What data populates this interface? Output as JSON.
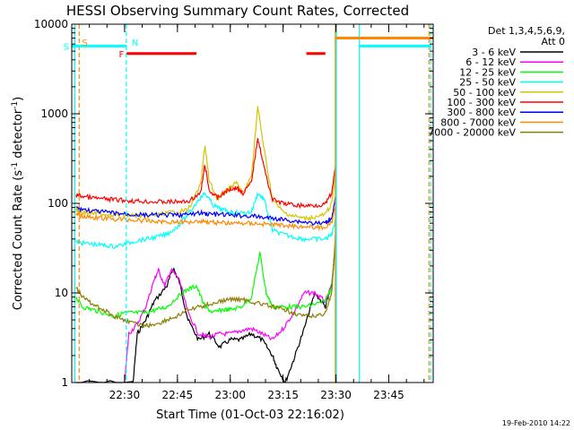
{
  "chart_data": {
    "type": "line",
    "title": "HESSI Observing Summary Count Rates, Corrected",
    "xlabel": "Start Time (01-Oct-03 22:16:02)",
    "ylabel_main": "Corrected Count Rate (s",
    "ylabel_sup1": "-1",
    "ylabel_mid": " detector",
    "ylabel_sup2": "-1",
    "ylabel_end": ")",
    "y_scale": "log",
    "ylim": [
      1,
      10000
    ],
    "xlim_minutes": [
      22.25,
      23.96
    ],
    "x_ticks": [
      {
        "label": "22:30",
        "t": 22.5
      },
      {
        "label": "22:45",
        "t": 22.75
      },
      {
        "label": "23:00",
        "t": 23.0
      },
      {
        "label": "23:15",
        "t": 23.25
      },
      {
        "label": "23:30",
        "t": 23.5
      },
      {
        "label": "23:45",
        "t": 23.75
      }
    ],
    "y_ticks": [
      {
        "label": "1",
        "v": 1
      },
      {
        "label": "10",
        "v": 10
      },
      {
        "label": "100",
        "v": 100
      },
      {
        "label": "1000",
        "v": 1000
      },
      {
        "label": "10000",
        "v": 10000
      }
    ],
    "legend": {
      "placement": "right",
      "header1": "Det 1,3,4,5,6,9,",
      "header2": "Att 0",
      "entries": [
        {
          "label": "3 - 6 keV",
          "color": "#000000"
        },
        {
          "label": "6 - 12 keV",
          "color": "#ff00ff"
        },
        {
          "label": "12 - 25 keV",
          "color": "#00ff00"
        },
        {
          "label": "25 - 50 keV",
          "color": "#00ffff"
        },
        {
          "label": "50 - 100 keV",
          "color": "#d4c400"
        },
        {
          "label": "100 - 300 keV",
          "color": "#ff0000"
        },
        {
          "label": "300 - 800 keV",
          "color": "#0000ff"
        },
        {
          "label": "800 - 7000 keV",
          "color": "#ff8800"
        },
        {
          "label": "7000 - 20000 keV",
          "color": "#8b7d00"
        }
      ]
    },
    "series": [
      {
        "name": "3 - 6 keV",
        "color": "#000000",
        "points": [
          [
            22.27,
            1
          ],
          [
            22.54,
            1
          ],
          [
            22.56,
            3.5
          ],
          [
            22.6,
            5
          ],
          [
            22.64,
            8
          ],
          [
            22.7,
            12
          ],
          [
            22.73,
            19
          ],
          [
            22.76,
            13
          ],
          [
            22.8,
            5
          ],
          [
            22.85,
            3
          ],
          [
            22.9,
            3.5
          ],
          [
            22.95,
            2.5
          ],
          [
            23.0,
            3
          ],
          [
            23.05,
            3
          ],
          [
            23.1,
            3.5
          ],
          [
            23.15,
            3
          ],
          [
            23.2,
            2
          ],
          [
            23.22,
            1.5
          ],
          [
            23.26,
            1
          ],
          [
            23.3,
            1.8
          ],
          [
            23.35,
            4
          ],
          [
            23.4,
            10
          ],
          [
            23.45,
            7
          ],
          [
            23.48,
            12
          ],
          [
            23.5,
            40
          ]
        ]
      },
      {
        "name": "6 - 12 keV",
        "color": "#ff00ff",
        "points": [
          [
            22.5,
            1
          ],
          [
            22.52,
            3.5
          ],
          [
            22.56,
            4.5
          ],
          [
            22.6,
            7
          ],
          [
            22.64,
            14
          ],
          [
            22.66,
            18
          ],
          [
            22.69,
            12
          ],
          [
            22.72,
            18
          ],
          [
            22.76,
            14
          ],
          [
            22.8,
            6
          ],
          [
            22.85,
            3.5
          ],
          [
            22.9,
            3.2
          ],
          [
            22.95,
            3.5
          ],
          [
            23.0,
            3.5
          ],
          [
            23.05,
            3.8
          ],
          [
            23.1,
            4
          ],
          [
            23.15,
            3.5
          ],
          [
            23.2,
            3
          ],
          [
            23.25,
            4
          ],
          [
            23.3,
            6
          ],
          [
            23.35,
            10
          ],
          [
            23.4,
            10
          ],
          [
            23.45,
            8
          ],
          [
            23.48,
            12
          ],
          [
            23.5,
            40
          ]
        ]
      },
      {
        "name": "12 - 25 keV",
        "color": "#00ff00",
        "points": [
          [
            22.27,
            9
          ],
          [
            22.3,
            7
          ],
          [
            22.35,
            6.5
          ],
          [
            22.4,
            6
          ],
          [
            22.45,
            5.5
          ],
          [
            22.5,
            6
          ],
          [
            22.55,
            6
          ],
          [
            22.6,
            6
          ],
          [
            22.65,
            6.5
          ],
          [
            22.7,
            7
          ],
          [
            22.75,
            9
          ],
          [
            22.8,
            11
          ],
          [
            22.84,
            12
          ],
          [
            22.88,
            7
          ],
          [
            22.92,
            6
          ],
          [
            22.96,
            6.5
          ],
          [
            23.0,
            6.5
          ],
          [
            23.05,
            7
          ],
          [
            23.1,
            9
          ],
          [
            23.14,
            28
          ],
          [
            23.17,
            10
          ],
          [
            23.2,
            7
          ],
          [
            23.25,
            7
          ],
          [
            23.3,
            7
          ],
          [
            23.35,
            7
          ],
          [
            23.4,
            7.5
          ],
          [
            23.45,
            8
          ],
          [
            23.48,
            12
          ],
          [
            23.5,
            40
          ]
        ]
      },
      {
        "name": "25 - 50 keV",
        "color": "#00ffff",
        "points": [
          [
            22.27,
            37
          ],
          [
            22.3,
            36
          ],
          [
            22.35,
            35
          ],
          [
            22.4,
            34
          ],
          [
            22.45,
            33
          ],
          [
            22.5,
            35
          ],
          [
            22.55,
            38
          ],
          [
            22.6,
            40
          ],
          [
            22.65,
            42
          ],
          [
            22.7,
            45
          ],
          [
            22.75,
            55
          ],
          [
            22.8,
            75
          ],
          [
            22.85,
            110
          ],
          [
            22.88,
            130
          ],
          [
            22.92,
            95
          ],
          [
            22.96,
            85
          ],
          [
            23.0,
            80
          ],
          [
            23.05,
            78
          ],
          [
            23.1,
            80
          ],
          [
            23.13,
            130
          ],
          [
            23.16,
            110
          ],
          [
            23.2,
            50
          ],
          [
            23.25,
            45
          ],
          [
            23.3,
            42
          ],
          [
            23.35,
            40
          ],
          [
            23.4,
            40
          ],
          [
            23.45,
            40
          ],
          [
            23.48,
            45
          ],
          [
            23.5,
            70
          ]
        ]
      },
      {
        "name": "50 - 100 keV",
        "color": "#d4c400",
        "points": [
          [
            22.27,
            85
          ],
          [
            22.3,
            80
          ],
          [
            22.35,
            78
          ],
          [
            22.4,
            76
          ],
          [
            22.45,
            75
          ],
          [
            22.5,
            74
          ],
          [
            22.55,
            73
          ],
          [
            22.6,
            72
          ],
          [
            22.65,
            74
          ],
          [
            22.7,
            78
          ],
          [
            22.75,
            80
          ],
          [
            22.8,
            85
          ],
          [
            22.86,
            160
          ],
          [
            22.88,
            450
          ],
          [
            22.9,
            180
          ],
          [
            22.94,
            110
          ],
          [
            22.97,
            130
          ],
          [
            23.0,
            150
          ],
          [
            23.03,
            170
          ],
          [
            23.06,
            130
          ],
          [
            23.1,
            200
          ],
          [
            23.13,
            1200
          ],
          [
            23.16,
            400
          ],
          [
            23.2,
            110
          ],
          [
            23.25,
            80
          ],
          [
            23.3,
            72
          ],
          [
            23.35,
            68
          ],
          [
            23.4,
            70
          ],
          [
            23.45,
            75
          ],
          [
            23.48,
            100
          ],
          [
            23.5,
            250
          ]
        ]
      },
      {
        "name": "100 - 300 keV",
        "color": "#ff0000",
        "points": [
          [
            22.27,
            125
          ],
          [
            22.3,
            120
          ],
          [
            22.35,
            115
          ],
          [
            22.4,
            112
          ],
          [
            22.45,
            110
          ],
          [
            22.5,
            108
          ],
          [
            22.55,
            106
          ],
          [
            22.6,
            105
          ],
          [
            22.65,
            104
          ],
          [
            22.7,
            104
          ],
          [
            22.75,
            104
          ],
          [
            22.8,
            105
          ],
          [
            22.86,
            130
          ],
          [
            22.88,
            270
          ],
          [
            22.9,
            140
          ],
          [
            22.94,
            115
          ],
          [
            22.97,
            130
          ],
          [
            23.0,
            145
          ],
          [
            23.03,
            150
          ],
          [
            23.06,
            130
          ],
          [
            23.1,
            170
          ],
          [
            23.13,
            550
          ],
          [
            23.16,
            250
          ],
          [
            23.2,
            110
          ],
          [
            23.25,
            100
          ],
          [
            23.3,
            96
          ],
          [
            23.35,
            94
          ],
          [
            23.4,
            95
          ],
          [
            23.45,
            98
          ],
          [
            23.48,
            130
          ],
          [
            23.5,
            280
          ]
        ]
      },
      {
        "name": "300 - 800 keV",
        "color": "#0000ff",
        "points": [
          [
            22.27,
            90
          ],
          [
            22.3,
            86
          ],
          [
            22.35,
            82
          ],
          [
            22.4,
            80
          ],
          [
            22.45,
            78
          ],
          [
            22.5,
            76
          ],
          [
            22.55,
            75
          ],
          [
            22.6,
            74
          ],
          [
            22.65,
            74
          ],
          [
            22.7,
            74
          ],
          [
            22.75,
            74
          ],
          [
            22.8,
            75
          ],
          [
            22.86,
            78
          ],
          [
            22.9,
            76
          ],
          [
            22.95,
            75
          ],
          [
            23.0,
            74
          ],
          [
            23.05,
            73
          ],
          [
            23.1,
            72
          ],
          [
            23.15,
            70
          ],
          [
            23.2,
            68
          ],
          [
            23.25,
            66
          ],
          [
            23.3,
            64
          ],
          [
            23.35,
            62
          ],
          [
            23.4,
            60
          ],
          [
            23.45,
            60
          ],
          [
            23.48,
            70
          ],
          [
            23.5,
            120
          ]
        ]
      },
      {
        "name": "800 - 7000 keV",
        "color": "#ff8800",
        "points": [
          [
            22.27,
            75
          ],
          [
            22.3,
            72
          ],
          [
            22.35,
            70
          ],
          [
            22.4,
            68
          ],
          [
            22.45,
            67
          ],
          [
            22.5,
            66
          ],
          [
            22.55,
            65
          ],
          [
            22.6,
            64
          ],
          [
            22.65,
            63
          ],
          [
            22.7,
            62
          ],
          [
            22.75,
            62
          ],
          [
            22.8,
            62
          ],
          [
            22.86,
            64
          ],
          [
            22.9,
            62
          ],
          [
            22.95,
            61
          ],
          [
            23.0,
            60
          ],
          [
            23.05,
            60
          ],
          [
            23.1,
            60
          ],
          [
            23.15,
            59
          ],
          [
            23.2,
            58
          ],
          [
            23.25,
            57
          ],
          [
            23.3,
            56
          ],
          [
            23.35,
            55
          ],
          [
            23.4,
            54
          ],
          [
            23.45,
            54
          ],
          [
            23.48,
            60
          ],
          [
            23.5,
            100
          ]
        ]
      },
      {
        "name": "7000 - 20000 keV",
        "color": "#8b7d00",
        "points": [
          [
            22.27,
            12
          ],
          [
            22.3,
            9
          ],
          [
            22.35,
            7.5
          ],
          [
            22.4,
            6.5
          ],
          [
            22.45,
            5.5
          ],
          [
            22.5,
            5
          ],
          [
            22.55,
            4.5
          ],
          [
            22.6,
            4.3
          ],
          [
            22.65,
            4.5
          ],
          [
            22.7,
            5
          ],
          [
            22.75,
            5.5
          ],
          [
            22.8,
            6.5
          ],
          [
            22.86,
            7
          ],
          [
            22.9,
            7.5
          ],
          [
            22.95,
            8
          ],
          [
            23.0,
            8.5
          ],
          [
            23.05,
            8.5
          ],
          [
            23.1,
            8
          ],
          [
            23.15,
            7.5
          ],
          [
            23.2,
            7
          ],
          [
            23.25,
            6.5
          ],
          [
            23.3,
            6
          ],
          [
            23.35,
            5.5
          ],
          [
            23.4,
            5.5
          ],
          [
            23.45,
            6
          ],
          [
            23.48,
            10
          ],
          [
            23.5,
            50
          ]
        ]
      }
    ],
    "flag_bars": [
      {
        "label": "S",
        "color": "#00ffff",
        "t_start": 22.25,
        "t_end": 22.51,
        "level": 5700
      },
      {
        "label": "F",
        "color": "#ff0000",
        "t_start": 22.51,
        "t_end": 22.84,
        "level": 4700
      },
      {
        "label": "",
        "color": "#ff0000",
        "t_start": 23.36,
        "t_end": 23.45,
        "level": 4700
      },
      {
        "label": "",
        "color": "#ff8800",
        "t_start": 23.5,
        "t_end": 23.96,
        "level": 7000
      },
      {
        "label": "",
        "color": "#00ffff",
        "t_start": 23.61,
        "t_end": 23.95,
        "level": 5700
      }
    ],
    "marker_labels": [
      {
        "label": "S",
        "color": "#ff8800",
        "t": 22.29
      },
      {
        "label": "N",
        "color": "#00ffff",
        "t": 22.525
      }
    ],
    "vlines": [
      {
        "t": 22.265,
        "color": "#00ffff",
        "dashed": false
      },
      {
        "t": 22.285,
        "color": "#ff8800",
        "dashed": true
      },
      {
        "t": 22.508,
        "color": "#00ffff",
        "dashed": true
      },
      {
        "t": 23.497,
        "color": "#ff8800",
        "dashed": false
      },
      {
        "t": 23.502,
        "color": "#00ffff",
        "dashed": false
      },
      {
        "t": 23.61,
        "color": "#00ffff",
        "dashed": false
      },
      {
        "t": 23.94,
        "color": "#ff8800",
        "dashed": true
      },
      {
        "t": 23.948,
        "color": "#00ffff",
        "dashed": true
      }
    ]
  },
  "footer": {
    "date_stamp": "19-Feb-2010 14:22"
  }
}
